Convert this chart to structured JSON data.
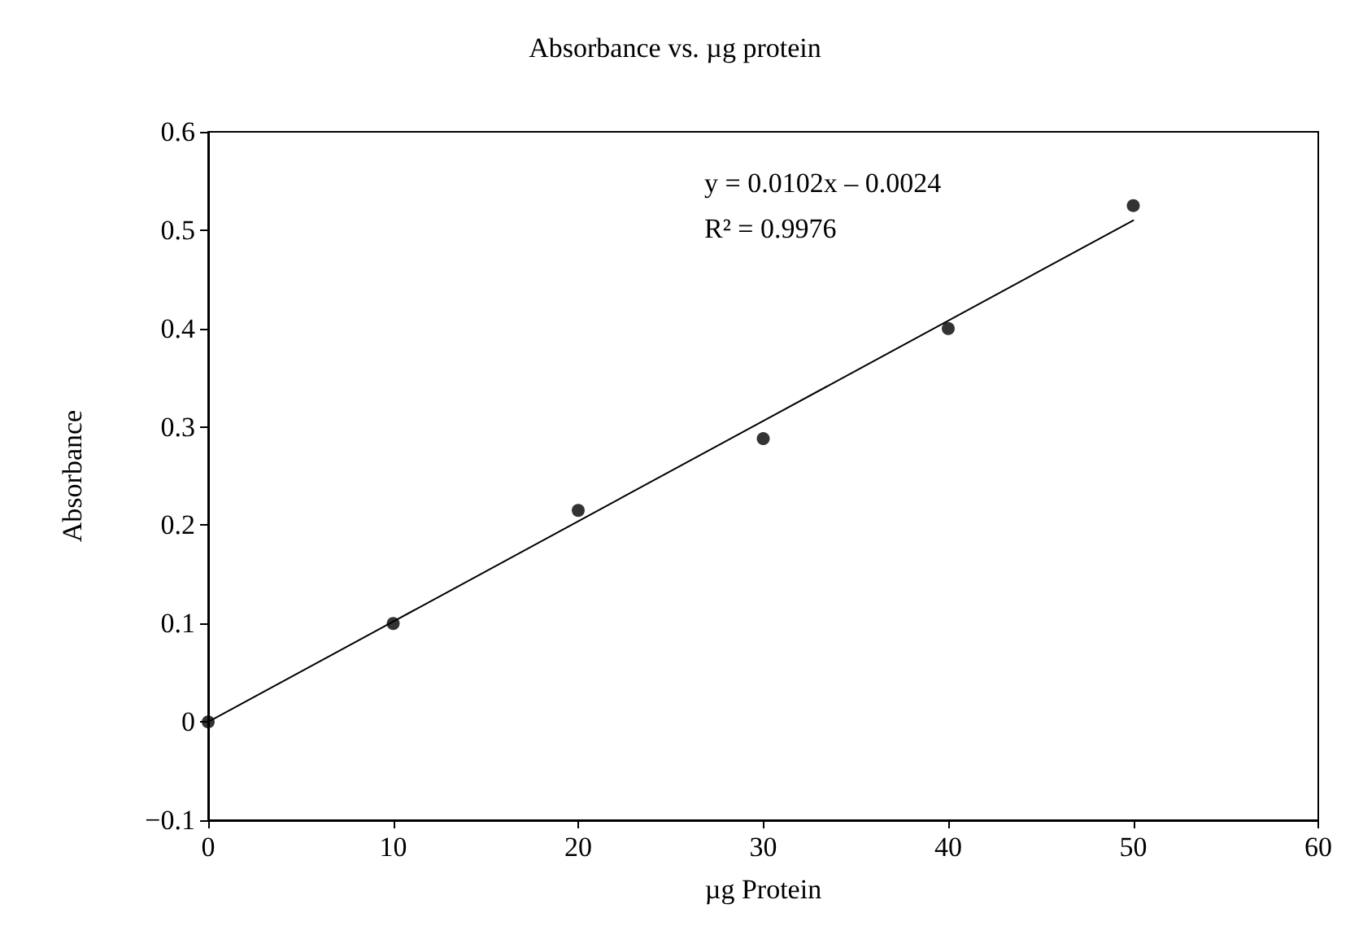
{
  "chart_data": {
    "type": "scatter",
    "title": "Absorbance vs. µg protein",
    "xlabel": "µg Protein",
    "ylabel": "Absorbance",
    "annotations": [
      "y = 0.0102x – 0.0024",
      "R² = 0.9976"
    ],
    "series": [
      {
        "color": "#000000",
        "x": [
          0,
          10,
          20,
          30,
          40,
          50
        ],
        "values": [
          0,
          0.1,
          0.215,
          0.288,
          0.4,
          0.525
        ],
        "marker": "circle"
      },
      {
        "type": "line",
        "color": "#000000",
        "x": [
          0,
          50
        ],
        "values": [
          0,
          0.51
        ],
        "marker": "none",
        "line_style": "solid"
      }
    ],
    "xlim": [
      0,
      60
    ],
    "xticks": [
      0,
      10,
      20,
      30,
      40,
      50,
      60
    ],
    "ylim": [
      -0.1,
      0.6
    ],
    "yticks": [
      {
        "value": -0.1,
        "label": "−0.1"
      },
      0,
      0.1,
      0.2,
      0.3,
      0.4,
      0.5,
      0.6
    ],
    "grid": false
  }
}
